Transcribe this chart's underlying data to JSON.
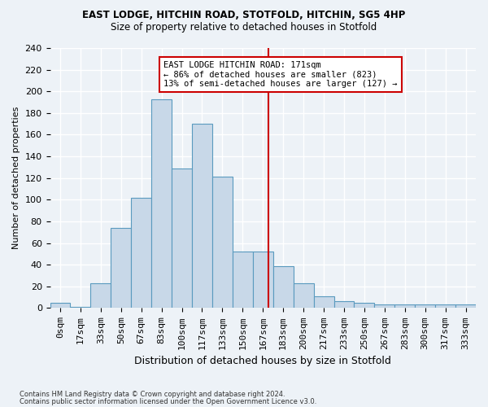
{
  "title1": "EAST LODGE, HITCHIN ROAD, STOTFOLD, HITCHIN, SG5 4HP",
  "title2": "Size of property relative to detached houses in Stotfold",
  "xlabel": "Distribution of detached houses by size in Stotfold",
  "ylabel": "Number of detached properties",
  "categories": [
    "0sqm",
    "17sqm",
    "33sqm",
    "50sqm",
    "67sqm",
    "83sqm",
    "100sqm",
    "117sqm",
    "133sqm",
    "150sqm",
    "167sqm",
    "183sqm",
    "200sqm",
    "217sqm",
    "233sqm",
    "250sqm",
    "267sqm",
    "283sqm",
    "300sqm",
    "317sqm",
    "333sqm"
  ],
  "values": [
    5,
    1,
    23,
    74,
    102,
    193,
    129,
    170,
    121,
    52,
    52,
    39,
    23,
    11,
    6,
    5,
    3,
    3,
    3,
    3,
    3
  ],
  "bar_color": "#c8d8e8",
  "bar_edge_color": "#5a9abf",
  "vline_x": 10.27,
  "vline_color": "#cc0000",
  "annotation_text": "EAST LODGE HITCHIN ROAD: 171sqm\n← 86% of detached houses are smaller (823)\n13% of semi-detached houses are larger (127) →",
  "annotation_box_color": "#ffffff",
  "annotation_box_edge_color": "#cc0000",
  "ylim": [
    0,
    240
  ],
  "yticks": [
    0,
    20,
    40,
    60,
    80,
    100,
    120,
    140,
    160,
    180,
    200,
    220,
    240
  ],
  "footer1": "Contains HM Land Registry data © Crown copyright and database right 2024.",
  "footer2": "Contains public sector information licensed under the Open Government Licence v3.0.",
  "bg_color": "#edf2f7",
  "grid_color": "#ffffff"
}
